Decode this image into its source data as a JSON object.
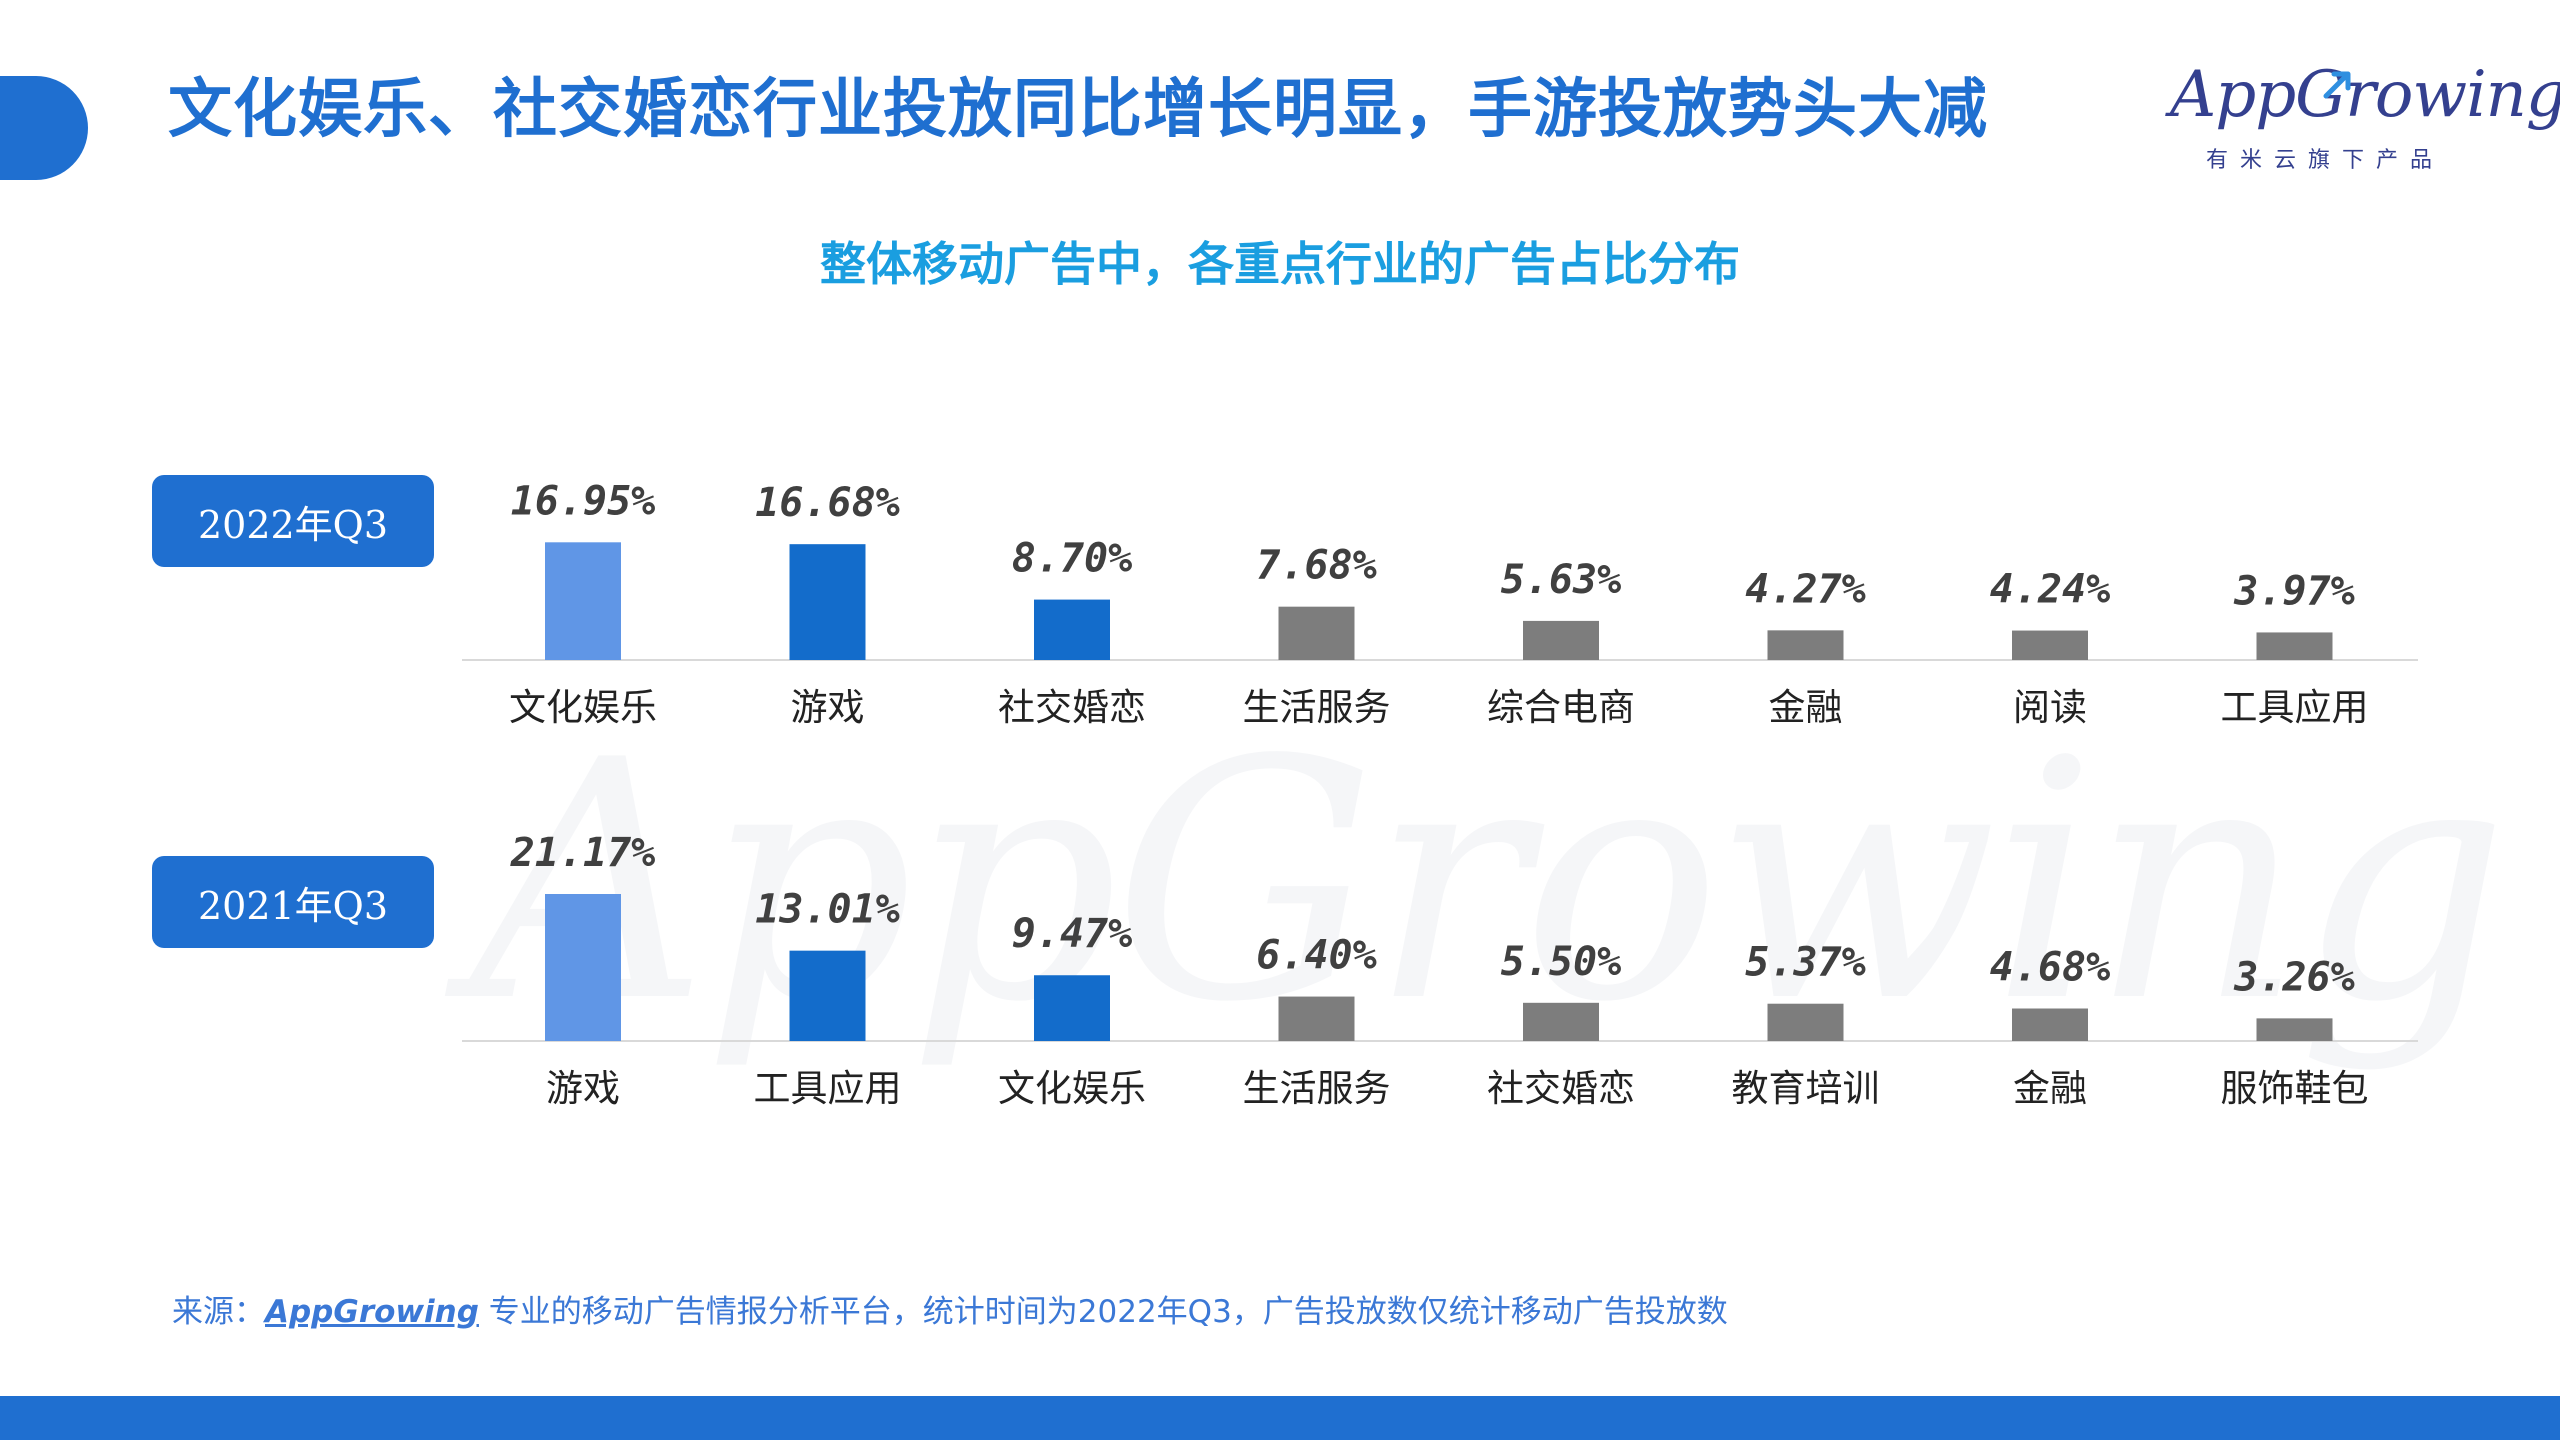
{
  "header": {
    "title": "文化娱乐、社交婚恋行业投放同比增长明显，手游投放势头大减"
  },
  "logo": {
    "wordmark": "AppGrowing",
    "tagline": "有米云旗下产品"
  },
  "colors": {
    "brand_blue": "#1f6fd0",
    "highlight_blue": "#6096e6",
    "other_gray": "#7d7d7d",
    "title_cyan": "#1a9ee0"
  },
  "chart_title": "整体移动广告中，各重点行业的广告占比分布",
  "chart_data": [
    {
      "type": "bar",
      "period": "2022年Q3",
      "categories": [
        "文化娱乐",
        "游戏",
        "社交婚恋",
        "生活服务",
        "综合电商",
        "金融",
        "阅读",
        "工具应用"
      ],
      "values": [
        16.95,
        16.68,
        8.7,
        7.68,
        5.63,
        4.27,
        4.24,
        3.97
      ],
      "labels": [
        "16.95%",
        "16.68%",
        "8.70%",
        "7.68%",
        "5.63%",
        "4.27%",
        "4.24%",
        "3.97%"
      ],
      "bar_colors": [
        "#6096e6",
        "#136ccb",
        "#136ccb",
        "#7d7d7d",
        "#7d7d7d",
        "#7d7d7d",
        "#7d7d7d",
        "#7d7d7d"
      ],
      "unit": "%",
      "ylim": [
        0,
        21.17
      ],
      "grid": false
    },
    {
      "type": "bar",
      "period": "2021年Q3",
      "categories": [
        "游戏",
        "工具应用",
        "文化娱乐",
        "生活服务",
        "社交婚恋",
        "教育培训",
        "金融",
        "服饰鞋包"
      ],
      "values": [
        21.17,
        13.01,
        9.47,
        6.4,
        5.5,
        5.37,
        4.68,
        3.26
      ],
      "labels": [
        "21.17%",
        "13.01%",
        "9.47%",
        "6.40%",
        "5.50%",
        "5.37%",
        "4.68%",
        "3.26%"
      ],
      "bar_colors": [
        "#6096e6",
        "#136ccb",
        "#136ccb",
        "#7d7d7d",
        "#7d7d7d",
        "#7d7d7d",
        "#7d7d7d",
        "#7d7d7d"
      ],
      "unit": "%",
      "ylim": [
        0,
        21.17
      ],
      "grid": false
    }
  ],
  "source": {
    "prefix": "来源：",
    "brand": "AppGrowing",
    "text": " 专业的移动广告情报分析平台，统计时间为2022年Q3，广告投放数仅统计移动广告投放数"
  }
}
